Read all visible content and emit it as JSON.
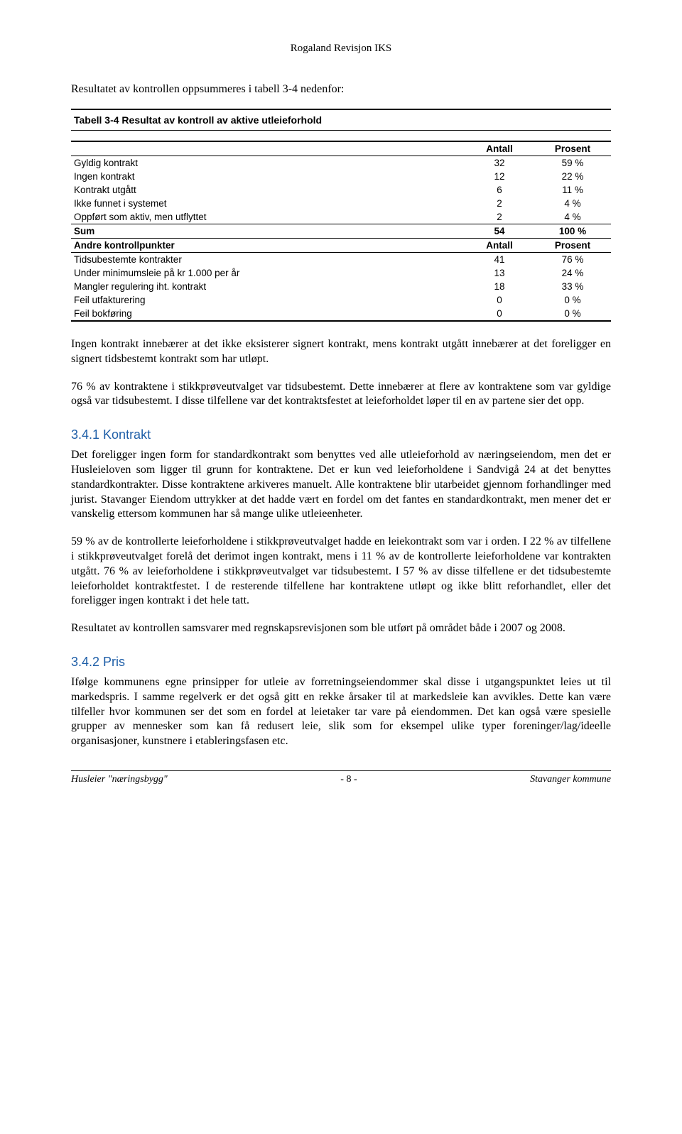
{
  "header": {
    "company": "Rogaland Revisjon IKS"
  },
  "intro": "Resultatet av kontrollen oppsummeres i tabell 3-4 nedenfor:",
  "table": {
    "title": "Tabell 3-4 Resultat av kontroll av aktive utleieforhold",
    "col_antall": "Antall",
    "col_prosent": "Prosent",
    "section1": {
      "rows": [
        {
          "label": "Gyldig kontrakt",
          "antall": "32",
          "prosent": "59 %"
        },
        {
          "label": "Ingen kontrakt",
          "antall": "12",
          "prosent": "22 %"
        },
        {
          "label": "Kontrakt utgått",
          "antall": "6",
          "prosent": "11 %"
        },
        {
          "label": "Ikke funnet i systemet",
          "antall": "2",
          "prosent": "4 %"
        },
        {
          "label": "Oppført som aktiv, men utflyttet",
          "antall": "2",
          "prosent": "4 %"
        }
      ],
      "sum": {
        "label": "Sum",
        "antall": "54",
        "prosent": "100 %"
      }
    },
    "section2_header": "Andre kontrollpunkter",
    "section2": {
      "rows": [
        {
          "label": "Tidsubestemte kontrakter",
          "antall": "41",
          "prosent": "76 %"
        },
        {
          "label": "Under minimumsleie på kr 1.000 per år",
          "antall": "13",
          "prosent": "24 %"
        },
        {
          "label": "Mangler regulering iht. kontrakt",
          "antall": "18",
          "prosent": "33 %"
        },
        {
          "label": "Feil utfakturering",
          "antall": "0",
          "prosent": "0 %"
        },
        {
          "label": "Feil bokføring",
          "antall": "0",
          "prosent": "0 %"
        }
      ]
    }
  },
  "para1": "Ingen kontrakt innebærer at det ikke eksisterer signert kontrakt, mens kontrakt utgått innebærer at det foreligger en signert tidsbestemt kontrakt som har utløpt.",
  "para2": "76 % av kontraktene i stikkprøveutvalget var tidsubestemt. Dette innebærer at flere av kontraktene som var gyldige også var tidsubestemt. I disse tilfellene var det kontraktsfestet at leieforholdet løper til en av partene sier det opp.",
  "section_kontrakt": {
    "heading": "3.4.1  Kontrakt",
    "p1": "Det foreligger ingen form for standardkontrakt som benyttes ved alle utleieforhold av næringseiendom, men det er Husleieloven som ligger til grunn for kontraktene. Det er kun ved leieforholdene i Sandvigå 24 at det benyttes standardkontrakter. Disse kontraktene arkiveres manuelt. Alle kontraktene blir utarbeidet gjennom forhandlinger med jurist. Stavanger Eiendom uttrykker at det hadde vært en fordel om det fantes en standardkontrakt, men mener det er vanskelig ettersom kommunen har så mange ulike utleieenheter.",
    "p2": "59 % av de kontrollerte leieforholdene i stikkprøveutvalget hadde en leiekontrakt som var i orden. I 22 % av tilfellene i stikkprøveutvalget forelå det derimot ingen kontrakt, mens i 11 % av de kontrollerte leieforholdene var kontrakten utgått. 76 % av leieforholdene i stikkprøveutvalget var tidsubestemt. I 57 % av disse tilfellene er det tidsubestemte leieforholdet kontraktfestet. I de resterende tilfellene har kontraktene utløpt og ikke blitt reforhandlet, eller det foreligger ingen kontrakt i det hele tatt.",
    "p3": "Resultatet av kontrollen samsvarer med regnskapsrevisjonen som ble utført på området både i 2007 og 2008."
  },
  "section_pris": {
    "heading": "3.4.2  Pris",
    "p1": "Ifølge kommunens egne prinsipper for utleie av forretningseiendommer skal disse i utgangspunktet leies ut til markedspris. I samme regelverk er det også gitt en rekke årsaker til at markedsleie kan avvikles. Dette kan være tilfeller hvor kommunen ser det som en fordel at leietaker tar vare på eiendommen. Det kan også være spesielle grupper av mennesker som kan få redusert leie, slik som for eksempel ulike typer foreninger/lag/ideelle organisasjoner, kunstnere i etableringsfasen etc."
  },
  "footer": {
    "left": "Husleier \"næringsbygg\"",
    "center": "- 8 -",
    "right": "Stavanger kommune"
  }
}
